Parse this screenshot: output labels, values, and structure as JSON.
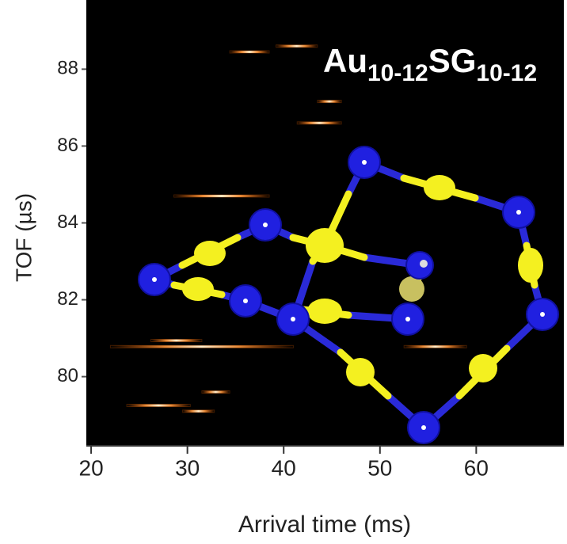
{
  "chart_data": {
    "type": "streak-map",
    "annotation": {
      "base1": "Au",
      "sub1": "10-12",
      "base2": "SG",
      "sub2": "10-12"
    },
    "x_label": "Arrival time (ms)",
    "y_label": "TOF (µs)",
    "xlim": [
      19.5,
      69.1
    ],
    "ylim": [
      78.2,
      89.8
    ],
    "xticks": [
      20,
      30,
      40,
      50,
      60
    ],
    "yticks": [
      80,
      82,
      84,
      86,
      88
    ],
    "color": "#ff6a00",
    "streaks": [
      {
        "x": [
          39.2,
          43.5
        ],
        "y": 88.6
      },
      {
        "x": [
          34.4,
          38.5
        ],
        "y": 88.45
      },
      {
        "x": [
          43.5,
          46
        ],
        "y": 87.16
      },
      {
        "x": [
          41.4,
          46
        ],
        "y": 86.6
      },
      {
        "x": [
          28.6,
          38.5
        ],
        "y": 84.7
      },
      {
        "x": [
          26.2,
          31.5
        ],
        "y": 80.94
      },
      {
        "x": [
          22,
          41
        ],
        "y": 80.78
      },
      {
        "x": [
          52.5,
          59
        ],
        "y": 80.78
      },
      {
        "x": [
          31.5,
          34.4
        ],
        "y": 79.6
      },
      {
        "x": [
          23.7,
          30.3
        ],
        "y": 79.25
      },
      {
        "x": [
          29.5,
          32.8
        ],
        "y": 79.1
      }
    ]
  }
}
